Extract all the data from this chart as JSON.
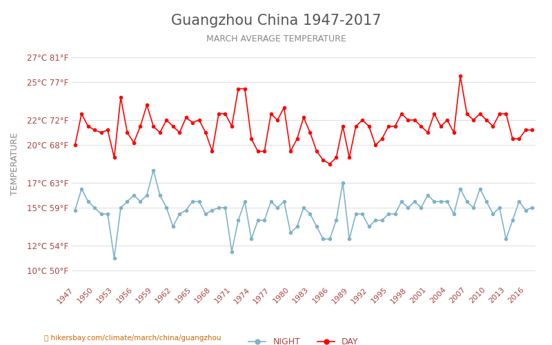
{
  "title": "Guangzhou China 1947-2017",
  "subtitle": "MARCH AVERAGE TEMPERATURE",
  "ylabel": "TEMPERATURE",
  "xlabel_url": "hikersbay.com/climate/march/china/guangzhou",
  "yticks_celsius": [
    10,
    12,
    15,
    17,
    20,
    22,
    25,
    27
  ],
  "yticks_fahrenheit": [
    50,
    54,
    59,
    63,
    68,
    72,
    77,
    81
  ],
  "ylim": [
    9,
    28
  ],
  "years": [
    1947,
    1948,
    1949,
    1950,
    1951,
    1952,
    1953,
    1954,
    1955,
    1956,
    1957,
    1958,
    1959,
    1960,
    1961,
    1962,
    1963,
    1964,
    1965,
    1966,
    1967,
    1968,
    1969,
    1970,
    1971,
    1972,
    1973,
    1974,
    1975,
    1976,
    1977,
    1978,
    1979,
    1980,
    1981,
    1982,
    1983,
    1984,
    1985,
    1986,
    1987,
    1988,
    1989,
    1990,
    1991,
    1992,
    1993,
    1994,
    1995,
    1996,
    1997,
    1998,
    1999,
    2000,
    2001,
    2002,
    2003,
    2004,
    2005,
    2006,
    2007,
    2008,
    2009,
    2010,
    2011,
    2012,
    2013,
    2014,
    2015,
    2016,
    2017
  ],
  "day_temps": [
    20.0,
    22.5,
    21.5,
    21.2,
    21.0,
    21.2,
    19.0,
    23.8,
    21.0,
    20.2,
    21.5,
    23.2,
    21.5,
    21.0,
    22.0,
    21.5,
    21.0,
    22.2,
    21.8,
    22.0,
    21.0,
    19.5,
    22.5,
    22.5,
    21.5,
    24.5,
    24.5,
    20.5,
    19.5,
    19.5,
    22.5,
    22.0,
    23.0,
    19.5,
    20.5,
    22.2,
    21.0,
    19.5,
    18.8,
    18.5,
    19.0,
    21.5,
    19.0,
    21.5,
    22.0,
    21.5,
    20.0,
    20.5,
    21.5,
    21.5,
    22.5,
    22.0,
    22.0,
    21.5,
    21.0,
    22.5,
    21.5,
    22.0,
    21.0,
    25.5,
    22.5,
    22.0,
    22.5,
    22.0,
    21.5,
    22.5,
    22.5,
    20.5,
    20.5,
    21.2,
    21.2
  ],
  "night_temps": [
    14.8,
    16.5,
    15.5,
    15.0,
    14.5,
    14.5,
    11.0,
    15.0,
    15.5,
    16.0,
    15.5,
    16.0,
    18.0,
    16.0,
    15.0,
    13.5,
    14.5,
    14.8,
    15.5,
    15.5,
    14.5,
    14.8,
    15.0,
    15.0,
    11.5,
    14.0,
    15.5,
    12.5,
    14.0,
    14.0,
    15.5,
    15.0,
    15.5,
    13.0,
    13.5,
    15.0,
    14.5,
    13.5,
    12.5,
    12.5,
    14.0,
    17.0,
    12.5,
    14.5,
    14.5,
    13.5,
    14.0,
    14.0,
    14.5,
    14.5,
    15.5,
    15.0,
    15.5,
    15.0,
    16.0,
    15.5,
    15.5,
    15.5,
    14.5,
    16.5,
    15.5,
    15.0,
    16.5,
    15.5,
    14.5,
    15.0,
    12.5,
    14.0,
    15.5,
    14.8,
    15.0
  ],
  "day_color": "#ff0000",
  "night_color": "#7fb3c8",
  "grid_color": "#e0e0e0",
  "background_color": "#ffffff",
  "title_color": "#555555",
  "subtitle_color": "#888888",
  "ylabel_color": "#888888",
  "tick_label_color": "#aa4444",
  "url_color": "#cc6600",
  "legend_night_color": "#7fb3c8",
  "legend_day_color": "#ff0000"
}
